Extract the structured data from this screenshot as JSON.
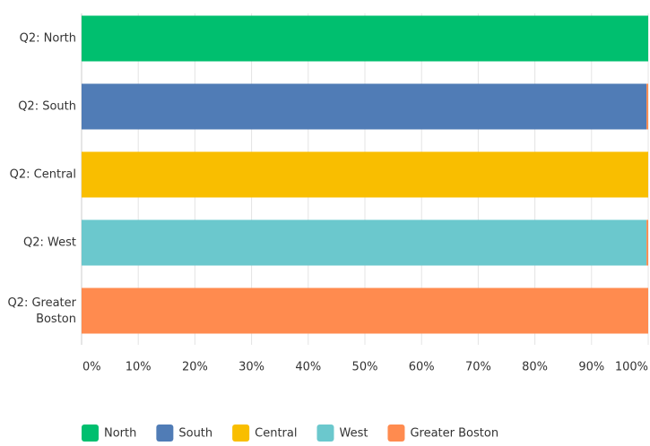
{
  "chart_data": {
    "type": "stacked-barh",
    "categories": [
      "Q2: North",
      "Q2: South",
      "Q2: Central",
      "Q2: West",
      "Q2: Greater Boston"
    ],
    "series": [
      {
        "name": "North",
        "color": "#00bf6f",
        "values": [
          100,
          0,
          0,
          0,
          0
        ]
      },
      {
        "name": "South",
        "color": "#507cb6",
        "values": [
          0,
          99.7,
          0,
          0,
          0
        ]
      },
      {
        "name": "Central",
        "color": "#f9be00",
        "values": [
          0,
          0,
          100,
          0,
          0
        ]
      },
      {
        "name": "West",
        "color": "#6bc8cd",
        "values": [
          0,
          0,
          0,
          99.7,
          0
        ]
      },
      {
        "name": "Greater Boston",
        "color": "#ff8b4f",
        "values": [
          0,
          0.3,
          0,
          0.3,
          100
        ]
      }
    ],
    "xlim": [
      0,
      100
    ],
    "xticks": [
      {
        "value": 0,
        "label": "0%"
      },
      {
        "value": 10,
        "label": "10%"
      },
      {
        "value": 20,
        "label": "20%"
      },
      {
        "value": 30,
        "label": "30%"
      },
      {
        "value": 40,
        "label": "40%"
      },
      {
        "value": 50,
        "label": "50%"
      },
      {
        "value": 60,
        "label": "60%"
      },
      {
        "value": 70,
        "label": "70%"
      },
      {
        "value": 80,
        "label": "80%"
      },
      {
        "value": 90,
        "label": "90%"
      },
      {
        "value": 100,
        "label": "100%"
      }
    ],
    "grid": true
  }
}
